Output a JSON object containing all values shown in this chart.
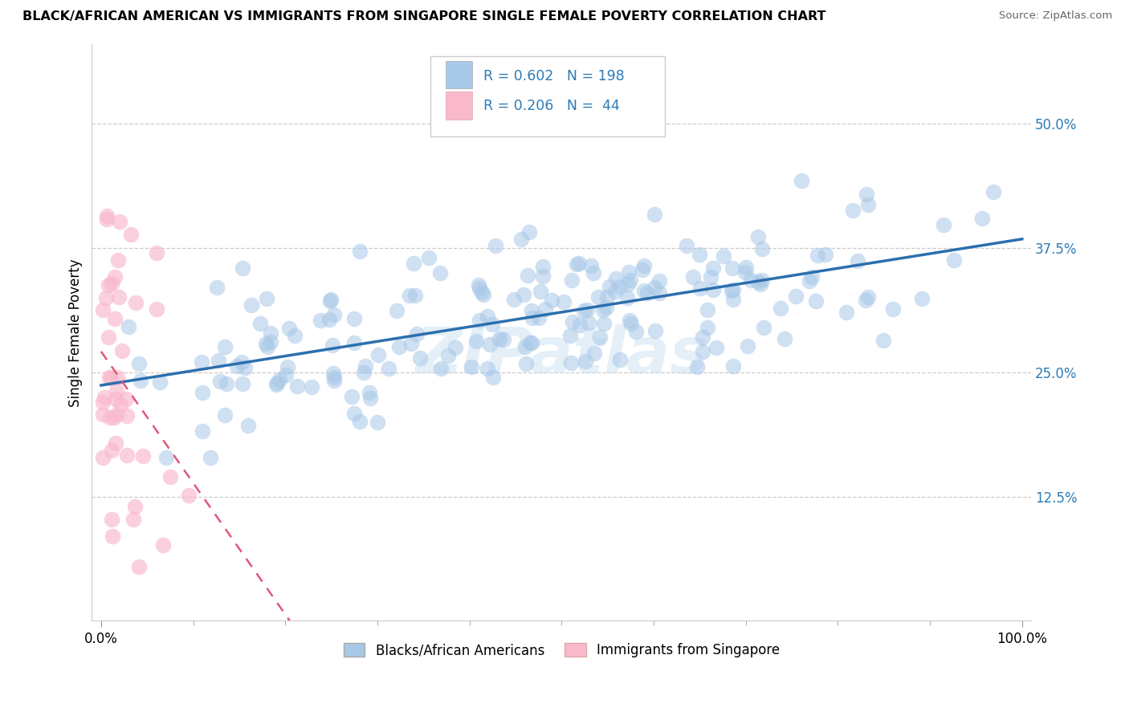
{
  "title": "BLACK/AFRICAN AMERICAN VS IMMIGRANTS FROM SINGAPORE SINGLE FEMALE POVERTY CORRELATION CHART",
  "source": "Source: ZipAtlas.com",
  "ylabel": "Single Female Poverty",
  "blue_R": 0.602,
  "blue_N": 198,
  "pink_R": 0.206,
  "pink_N": 44,
  "blue_color": "#a8c8e8",
  "pink_color": "#f9b8cc",
  "blue_line_color": "#2c6fad",
  "pink_line_color": "#e05878",
  "pink_dash_color": "#e8a0b0",
  "watermark": "ZIPatlas",
  "yticks": [
    0.125,
    0.25,
    0.375,
    0.5
  ],
  "ytick_labels": [
    "12.5%",
    "25.0%",
    "37.5%",
    "50.0%"
  ],
  "legend_blue_label": "Blacks/African Americans",
  "legend_pink_label": "Immigrants from Singapore",
  "blue_seed": 12,
  "pink_seed": 7
}
